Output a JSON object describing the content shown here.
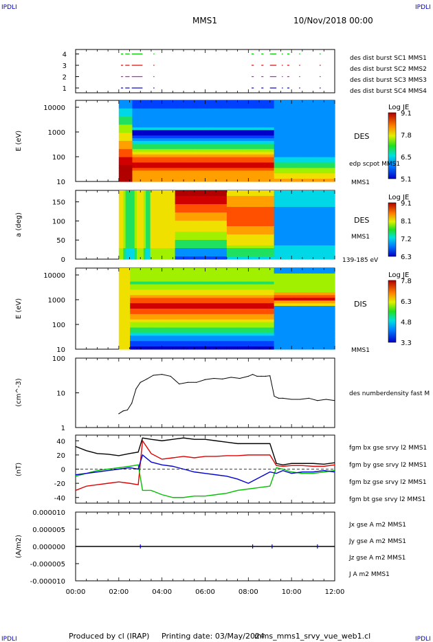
{
  "header": {
    "corner_tl": "IPDLI",
    "corner_tr": "IPDLI",
    "corner_bl": "IPDLI",
    "corner_br": "IPDLI",
    "title": "MMS1",
    "date": "10/Nov/2018 00:00"
  },
  "footer": {
    "produced": "Produced by cl (IRAP)",
    "printing": "Printing date: 03/May/2024",
    "file": "mms_mms1_srvy_vue_web1.cl"
  },
  "colors": {
    "green": "#00c000",
    "magenta": "#e000e0",
    "red": "#e00000",
    "blue": "#0000d0",
    "black": "#000000"
  },
  "chart_data": [
    {
      "id": "burst",
      "type": "scatter",
      "y_ticks": [
        "1",
        "2",
        "3",
        "4"
      ],
      "legend": [
        {
          "label": "des dist burst SC1 MMS1",
          "color": "#0000d0"
        },
        {
          "label": "des dist burst SC2 MMS2",
          "color": "#e000e0"
        },
        {
          "label": "des dist burst SC3 MMS3",
          "color": "#e00000"
        },
        {
          "label": "des dist burst SC4 MMS4",
          "color": "#00c000"
        }
      ],
      "series": [
        {
          "level": 1,
          "color": "#0000d0",
          "intervals": [
            [
              2.1,
              2.2
            ],
            [
              2.3,
              2.5
            ],
            [
              2.6,
              3.1
            ],
            [
              3.6,
              3.65
            ],
            [
              8.15,
              8.25
            ],
            [
              8.6,
              8.7
            ],
            [
              9.0,
              9.3
            ],
            [
              9.55,
              9.6
            ],
            [
              9.8,
              9.9
            ],
            [
              10.35,
              10.4
            ],
            [
              11.3,
              11.35
            ]
          ]
        },
        {
          "level": 2,
          "color": "#e000e0",
          "intervals": [
            [
              2.1,
              2.2
            ],
            [
              2.3,
              2.5
            ],
            [
              2.6,
              3.1
            ],
            [
              3.6,
              3.65
            ],
            [
              8.15,
              8.25
            ],
            [
              8.6,
              8.7
            ],
            [
              9.0,
              9.3
            ],
            [
              9.55,
              9.6
            ],
            [
              9.8,
              9.9
            ],
            [
              10.35,
              10.4
            ],
            [
              11.3,
              11.35
            ]
          ]
        },
        {
          "level": 3,
          "color": "#e00000",
          "intervals": [
            [
              2.1,
              2.2
            ],
            [
              2.3,
              2.5
            ],
            [
              2.6,
              3.1
            ],
            [
              3.6,
              3.65
            ],
            [
              8.15,
              8.25
            ],
            [
              8.6,
              8.7
            ],
            [
              9.0,
              9.3
            ],
            [
              9.55,
              9.6
            ],
            [
              9.8,
              9.9
            ],
            [
              10.35,
              10.4
            ],
            [
              11.3,
              11.35
            ]
          ]
        },
        {
          "level": 4,
          "color": "#00c000",
          "intervals": [
            [
              2.1,
              2.2
            ],
            [
              2.3,
              2.5
            ],
            [
              2.6,
              3.1
            ],
            [
              3.6,
              3.65
            ],
            [
              8.15,
              8.25
            ],
            [
              8.6,
              8.7
            ],
            [
              9.0,
              9.3
            ],
            [
              9.55,
              9.6
            ],
            [
              9.8,
              9.9
            ],
            [
              10.35,
              10.4
            ],
            [
              11.3,
              11.35
            ]
          ]
        }
      ]
    },
    {
      "id": "des_energy",
      "type": "heatmap",
      "ylabel": "E (eV)",
      "y_ticks": [
        "10",
        "100",
        "1000",
        "10000"
      ],
      "right_label": "DES",
      "right_sublabel": "edp scpot MMS1",
      "bottom_label": "MMS1",
      "cbar_title": "Log JE",
      "cbar_ticks": [
        "9.1",
        "7.8",
        "6.5",
        "5.1"
      ]
    },
    {
      "id": "des_pitch",
      "type": "heatmap",
      "ylabel": "a (deg)",
      "y_ticks": [
        "0",
        "50",
        "100",
        "150"
      ],
      "right_label": "DES",
      "right_sublabel": "MMS1",
      "bottom_label": "139-185 eV",
      "cbar_title": "Log JE",
      "cbar_ticks": [
        "9.1",
        "8.1",
        "7.2",
        "6.3"
      ]
    },
    {
      "id": "dis_energy",
      "type": "heatmap",
      "ylabel": "E (eV)",
      "y_ticks": [
        "10",
        "100",
        "1000",
        "10000"
      ],
      "right_label": "DIS",
      "bottom_label": "MMS1",
      "cbar_title": "Log JE",
      "cbar_ticks": [
        "7.8",
        "6.3",
        "4.8",
        "3.3"
      ]
    },
    {
      "id": "density",
      "type": "line",
      "ylabel": "(cm^-3)",
      "y_ticks": [
        "1",
        "10",
        "100"
      ],
      "legend": [
        {
          "label": "des numberdensity fast M",
          "color": "#000000"
        }
      ],
      "x": [
        2.0,
        2.2,
        2.4,
        2.6,
        2.8,
        3.0,
        3.3,
        3.6,
        4.0,
        4.4,
        4.8,
        5.2,
        5.6,
        6.0,
        6.4,
        6.8,
        7.2,
        7.6,
        8.0,
        8.2,
        8.4,
        8.6,
        8.8,
        9.0,
        9.2,
        9.4,
        9.6,
        10.0,
        10.4,
        10.8,
        11.2,
        11.6,
        12.0
      ],
      "values": [
        2.5,
        3.0,
        3.2,
        5.0,
        13,
        20,
        25,
        32,
        34,
        30,
        18,
        20,
        20,
        24,
        26,
        25,
        28,
        26,
        30,
        34,
        30,
        30,
        30,
        31,
        8,
        7,
        7,
        6.5,
        6.5,
        7,
        6,
        6.5,
        6
      ]
    },
    {
      "id": "fgm",
      "type": "line",
      "ylabel": "(nT)",
      "y_ticks": [
        "-40",
        "-20",
        "0",
        "20",
        "40"
      ],
      "ylim": [
        -48,
        48
      ],
      "legend": [
        {
          "label": "fgm bx gse srvy l2 MMS1",
          "color": "#e00000"
        },
        {
          "label": "fgm by gse srvy l2 MMS1",
          "color": "#00c000"
        },
        {
          "label": "fgm bz gse srvy l2 MMS1",
          "color": "#0000d0"
        },
        {
          "label": "fgm bt gse srvy l2 MMS1",
          "color": "#000000"
        }
      ],
      "x": [
        0,
        0.5,
        1.0,
        1.5,
        2.0,
        2.5,
        2.9,
        3.1,
        3.5,
        4.0,
        4.5,
        5.0,
        5.5,
        6.0,
        6.5,
        7.0,
        7.5,
        8.0,
        8.5,
        9.0,
        9.3,
        9.6,
        10.0,
        10.5,
        11.0,
        11.5,
        12.0
      ],
      "series": [
        {
          "name": "bx",
          "color": "#e00000",
          "values": [
            -30,
            -24,
            -22,
            -20,
            -18,
            -20,
            -22,
            40,
            22,
            14,
            16,
            18,
            16,
            18,
            18,
            19,
            19,
            20,
            20,
            20,
            5,
            4,
            5,
            5,
            4,
            4,
            6
          ]
        },
        {
          "name": "by",
          "color": "#00c000",
          "values": [
            -10,
            -6,
            -2,
            0,
            2,
            4,
            6,
            -30,
            -30,
            -36,
            -40,
            -40,
            -38,
            -38,
            -36,
            -34,
            -30,
            -28,
            -26,
            -24,
            2,
            0,
            -4,
            -6,
            -6,
            -4,
            -2
          ]
        },
        {
          "name": "bz",
          "color": "#0000d0",
          "values": [
            -8,
            -6,
            -4,
            -2,
            0,
            2,
            0,
            20,
            10,
            6,
            4,
            0,
            -4,
            -6,
            -8,
            -10,
            -14,
            -20,
            -12,
            -4,
            -6,
            -2,
            -6,
            -4,
            -4,
            -2,
            -4
          ]
        },
        {
          "name": "bt",
          "color": "#000000",
          "values": [
            32,
            26,
            22,
            21,
            19,
            22,
            24,
            44,
            42,
            40,
            42,
            44,
            42,
            42,
            40,
            38,
            36,
            36,
            36,
            36,
            8,
            6,
            8,
            8,
            8,
            7,
            9
          ]
        }
      ]
    },
    {
      "id": "current",
      "type": "line",
      "ylabel": "(A/m2)",
      "y_ticks": [
        "-0.000010",
        "-0.000005",
        "0.000000",
        "0.000005",
        "0.000010"
      ],
      "ylim": [
        -1e-05,
        1e-05
      ],
      "legend": [
        {
          "label": "Jx gse A m2 MMS1",
          "color": "#e00000"
        },
        {
          "label": "Jy gse A m2 MMS1",
          "color": "#00c000"
        },
        {
          "label": "Jz gse A m2 MMS1",
          "color": "#0000d0"
        },
        {
          "label": "J A m2 MMS1",
          "color": "#000000"
        }
      ],
      "x": [
        0,
        2,
        3,
        4,
        8.2,
        9.1,
        11.2,
        12
      ],
      "values": [
        0,
        0,
        0,
        0,
        0,
        0,
        0,
        0
      ]
    }
  ],
  "x_axis": {
    "ticks": [
      "00:00",
      "02:00",
      "04:00",
      "06:00",
      "08:00",
      "10:00",
      "12:00"
    ]
  }
}
